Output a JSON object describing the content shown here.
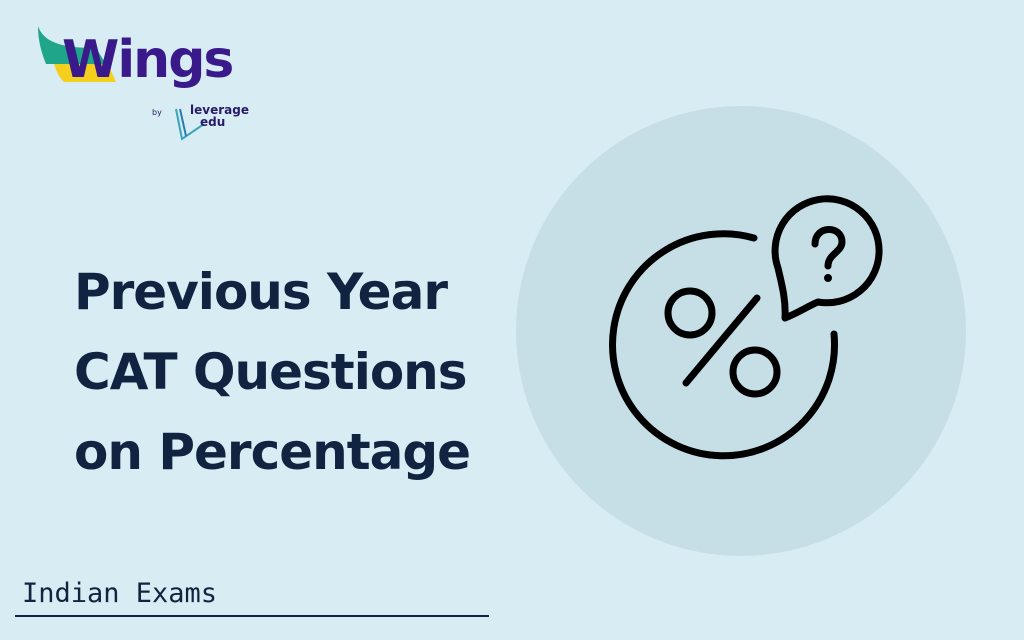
{
  "logo": {
    "brand": "Wings",
    "by": "by",
    "partner_line1": "leverage",
    "partner_line2": "edu"
  },
  "title": {
    "lines": [
      "Previous Year",
      "CAT Questions",
      "on Percentage"
    ]
  },
  "category": "Indian Exams",
  "icon": "percentage-with-question-bubble-icon",
  "colors": {
    "background": "#d7ecf3",
    "circle": "#c6dfe7",
    "text": "#102340",
    "brand": "#3a1a8a"
  }
}
